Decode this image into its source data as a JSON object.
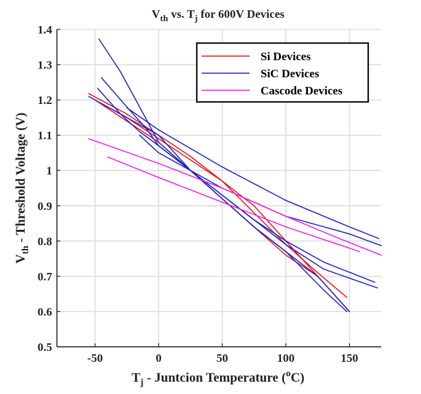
{
  "chart_data": {
    "type": "line",
    "title": {
      "parts": [
        {
          "text": "V",
          "sub": false
        },
        {
          "text": "th",
          "sub": true
        },
        {
          "text": " vs. T",
          "sub": false
        },
        {
          "text": "j",
          "sub": true
        },
        {
          "text": " for 600V Devices",
          "sub": false
        }
      ]
    },
    "xlabel": {
      "parts": [
        {
          "text": "T",
          "style": "normal"
        },
        {
          "text": "j",
          "style": "sub"
        },
        {
          "text": " - Juntcion Temperature (",
          "style": "normal"
        },
        {
          "text": "o",
          "style": "sup"
        },
        {
          "text": "C)",
          "style": "normal"
        }
      ]
    },
    "ylabel": {
      "parts": [
        {
          "text": "V",
          "style": "normal"
        },
        {
          "text": "th",
          "style": "sub"
        },
        {
          "text": " - Threshold Voltage (V)",
          "style": "normal"
        }
      ]
    },
    "xlim": [
      -80,
      175
    ],
    "ylim": [
      0.5,
      1.4
    ],
    "xticks": [
      -50,
      0,
      50,
      100,
      150
    ],
    "yticks": [
      0.5,
      0.6,
      0.7,
      0.8,
      0.9,
      1,
      1.1,
      1.2,
      1.3,
      1.4
    ],
    "xtick_labels": [
      "-50",
      "0",
      "50",
      "100",
      "150"
    ],
    "ytick_labels": [
      "0.5",
      "0.6",
      "0.7",
      "0.8",
      "0.9",
      "1",
      "1.1",
      "1.2",
      "1.3",
      "1.4"
    ],
    "grid": true,
    "legend_position": "top-right",
    "legend": [
      {
        "label": "Si Devices",
        "color": "#e8141c"
      },
      {
        "label": "SiC Devices",
        "color": "#1c22c4"
      },
      {
        "label": "Cascode Devices",
        "color": "#ee1ce6"
      }
    ],
    "series": [
      {
        "group": "Si Devices",
        "color": "#e8141c",
        "points": [
          [
            -55,
            1.218
          ],
          [
            -25,
            1.16
          ],
          [
            0,
            1.1
          ],
          [
            25,
            1.04
          ],
          [
            50,
            0.97
          ],
          [
            75,
            0.9
          ],
          [
            100,
            0.8
          ],
          [
            125,
            0.7
          ]
        ]
      },
      {
        "group": "Si Devices",
        "color": "#e8141c",
        "points": [
          [
            -50,
            1.2
          ],
          [
            -25,
            1.14
          ],
          [
            0,
            1.08
          ],
          [
            25,
            1.0
          ],
          [
            50,
            0.92
          ],
          [
            75,
            0.84
          ],
          [
            100,
            0.76
          ],
          [
            125,
            0.7
          ],
          [
            140,
            0.64
          ],
          [
            150,
            0.6
          ]
        ]
      },
      {
        "group": "Si Devices",
        "color": "#e8141c",
        "points": [
          [
            -45,
            1.19
          ],
          [
            -25,
            1.15
          ],
          [
            0,
            1.09
          ],
          [
            25,
            1.03
          ],
          [
            50,
            0.97
          ],
          [
            75,
            0.88
          ],
          [
            100,
            0.79
          ],
          [
            125,
            0.71
          ],
          [
            148,
            0.64
          ]
        ]
      },
      {
        "group": "SiC Devices",
        "color": "#1c22c4",
        "points": [
          [
            -47,
            1.373
          ],
          [
            -30,
            1.28
          ],
          [
            -15,
            1.18
          ],
          [
            0,
            1.08
          ],
          [
            25,
            1.0
          ],
          [
            50,
            0.92
          ],
          [
            75,
            0.84
          ],
          [
            100,
            0.77
          ],
          [
            125,
            0.7
          ],
          [
            150,
            0.6
          ]
        ]
      },
      {
        "group": "SiC Devices",
        "color": "#1c22c4",
        "points": [
          [
            -45,
            1.263
          ],
          [
            -25,
            1.18
          ],
          [
            -10,
            1.12
          ],
          [
            0,
            1.07
          ],
          [
            25,
            1.0
          ],
          [
            50,
            0.93
          ],
          [
            75,
            0.86
          ],
          [
            100,
            0.8
          ],
          [
            130,
            0.74
          ],
          [
            170,
            0.683
          ]
        ]
      },
      {
        "group": "SiC Devices",
        "color": "#1c22c4",
        "points": [
          [
            -48,
            1.233
          ],
          [
            -30,
            1.16
          ],
          [
            -15,
            1.11
          ],
          [
            0,
            1.07
          ],
          [
            25,
            1.0
          ],
          [
            50,
            0.92
          ],
          [
            75,
            0.84
          ],
          [
            100,
            0.77
          ],
          [
            130,
            0.66
          ],
          [
            148,
            0.6
          ]
        ]
      },
      {
        "group": "SiC Devices",
        "color": "#1c22c4",
        "points": [
          [
            -55,
            1.21
          ],
          [
            -25,
            1.15
          ],
          [
            0,
            1.1
          ],
          [
            25,
            1.0
          ],
          [
            50,
            0.93
          ],
          [
            75,
            0.86
          ],
          [
            100,
            0.79
          ],
          [
            130,
            0.72
          ],
          [
            172,
            0.667
          ]
        ]
      },
      {
        "group": "SiC Devices",
        "color": "#1c22c4",
        "points": [
          [
            -25,
            1.178
          ],
          [
            0,
            1.115
          ],
          [
            50,
            1.01
          ],
          [
            100,
            0.915
          ],
          [
            150,
            0.84
          ],
          [
            173,
            0.807
          ]
        ]
      },
      {
        "group": "SiC Devices",
        "color": "#1c22c4",
        "points": [
          [
            -15,
            1.1
          ],
          [
            0,
            1.05
          ],
          [
            25,
            1.0
          ],
          [
            50,
            0.95
          ],
          [
            100,
            0.87
          ],
          [
            150,
            0.82
          ],
          [
            165,
            0.8
          ],
          [
            175,
            0.787
          ]
        ]
      },
      {
        "group": "Cascode Devices",
        "color": "#ee1ce6",
        "points": [
          [
            -55,
            1.09
          ],
          [
            0,
            1.02
          ],
          [
            50,
            0.95
          ],
          [
            100,
            0.87
          ],
          [
            140,
            0.81
          ],
          [
            175,
            0.76
          ]
        ]
      },
      {
        "group": "Cascode Devices",
        "color": "#ee1ce6",
        "points": [
          [
            -40,
            1.038
          ],
          [
            0,
            0.98
          ],
          [
            50,
            0.91
          ],
          [
            100,
            0.84
          ],
          [
            158,
            0.77
          ]
        ]
      }
    ]
  }
}
